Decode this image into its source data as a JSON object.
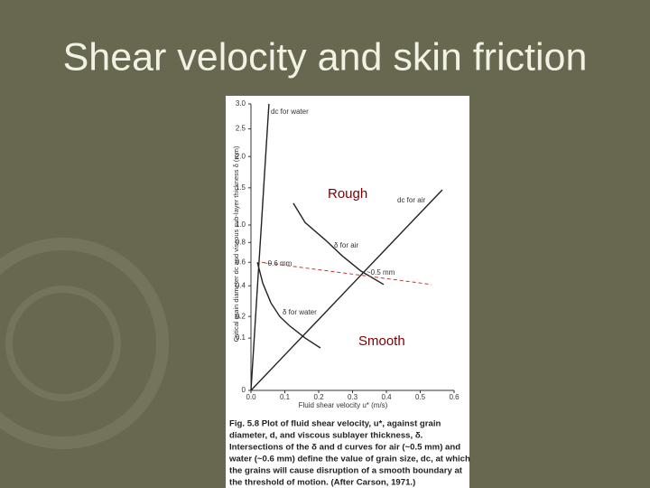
{
  "title": "Shear velocity and skin friction",
  "chart_data": {
    "type": "line",
    "xlabel": "Fluid shear velocity u* (m/s)",
    "ylabel": "Critical grain diameter dc and viscous sub-layer thickness δ (mm)",
    "yscale": "sqrt",
    "xlim": [
      0,
      0.6
    ],
    "xticks": [
      {
        "value": 0,
        "label": "0.0"
      },
      0.1,
      0.2,
      0.3,
      0.4,
      0.5,
      0.6
    ],
    "ylim": [
      0,
      3
    ],
    "yticks": [
      0,
      0.1,
      0.2,
      0.4,
      0.6,
      0.8,
      {
        "value": 1,
        "label": "1.0"
      },
      1.5,
      {
        "value": 2,
        "label": "2.0"
      },
      2.5,
      {
        "value": 3,
        "label": "3.0"
      }
    ],
    "series": [
      {
        "name": "dc for water",
        "color": "#222222",
        "x": [
          0,
          0.01,
          0.02,
          0.03,
          0.04,
          0.053
        ],
        "values": [
          0,
          0.11,
          0.43,
          0.96,
          1.71,
          3.0
        ]
      },
      {
        "name": "dc for air",
        "color": "#222222",
        "x": [
          0,
          0.1,
          0.2,
          0.3,
          0.4,
          0.5,
          0.565
        ],
        "values": [
          0,
          0.046,
          0.184,
          0.414,
          0.737,
          1.151,
          1.47
        ]
      },
      {
        "name": "δ for air",
        "color": "#222222",
        "x": [
          0.125,
          0.16,
          0.219,
          0.27,
          0.325,
          0.392
        ],
        "values": [
          1.28,
          1.03,
          0.83,
          0.66,
          0.52,
          0.41
        ]
      },
      {
        "name": "δ for water",
        "color": "#222222",
        "x": [
          0.019,
          0.035,
          0.059,
          0.085,
          0.112,
          0.16,
          0.205
        ],
        "values": [
          0.6,
          0.42,
          0.28,
          0.2,
          0.155,
          0.1,
          0.066
        ]
      }
    ],
    "dashed_line": {
      "color": "#c0392b",
      "x": [
        0.032,
        0.533
      ],
      "values": [
        0.6,
        0.41
      ]
    },
    "annotations": [
      "~0.6 mm",
      "~0.5 mm",
      "Rough",
      "Smooth"
    ],
    "caption": [
      "Fig. 5.8  Plot of fluid shear velocity, u*, against grain",
      "diameter, d, and viscous sublayer thickness, δ.",
      "Intersections of the δ and d curves for air (~0.5 mm) and",
      "water (~0.6 mm) define the value of grain size, dc, at which",
      "the grains will cause disruption of a smooth boundary at",
      "the threshold of motion. (After Carson, 1971.)"
    ]
  }
}
